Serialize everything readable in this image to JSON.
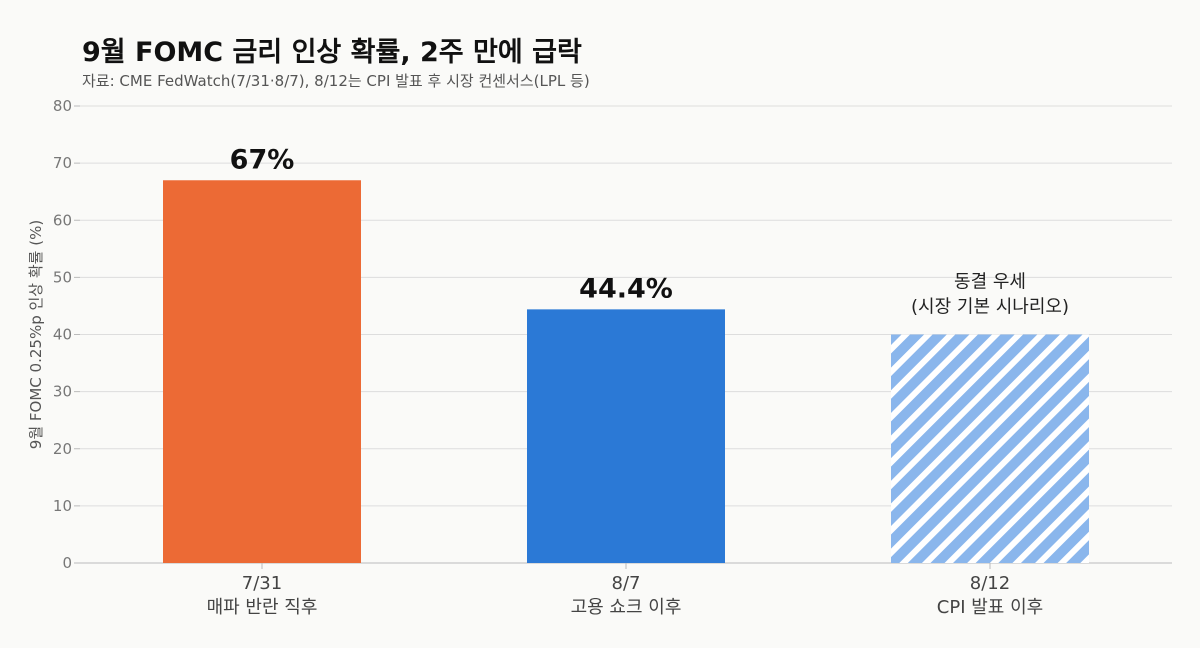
{
  "title": "9월 FOMC 금리 인상 확률, 2주 만에 급락",
  "subtitle": "자료: CME FedWatch(7/31·8/7), 8/12는 CPI 발표 후 시장 컨센서스(LPL 등)",
  "colors": {
    "bar1": "#ec6a35",
    "bar2": "#2b79d6",
    "bar3_stripe": "#8ab6ec",
    "grid": "#dddddd",
    "axis": "#bbbbbb"
  },
  "chart_data": {
    "type": "bar",
    "categories": [
      "7/31\n매파 반란 직후",
      "8/7\n고용 쇼크 이후",
      "8/12\nCPI 발표 이후"
    ],
    "category_lines": [
      [
        "7/31",
        "매파 반란 직후"
      ],
      [
        "8/7",
        "고용 쇼크 이후"
      ],
      [
        "8/12",
        "CPI 발표 이후"
      ]
    ],
    "values": [
      67,
      44.4,
      40
    ],
    "value_labels": [
      "67%",
      "44.4%",
      ""
    ],
    "annotations": [
      null,
      null,
      [
        "동결 우세",
        "(시장 기본 시나리오)"
      ]
    ],
    "bar_styles": [
      "solid",
      "solid",
      "hatched"
    ],
    "title": "9월 FOMC 금리 인상 확률, 2주 만에 급락",
    "xlabel": "",
    "ylabel": "9월 FOMC 0.25%p 인상 확률 (%)",
    "ylim": [
      0,
      80
    ],
    "yticks": [
      0,
      10,
      20,
      30,
      40,
      50,
      60,
      70,
      80
    ],
    "grid": true
  }
}
